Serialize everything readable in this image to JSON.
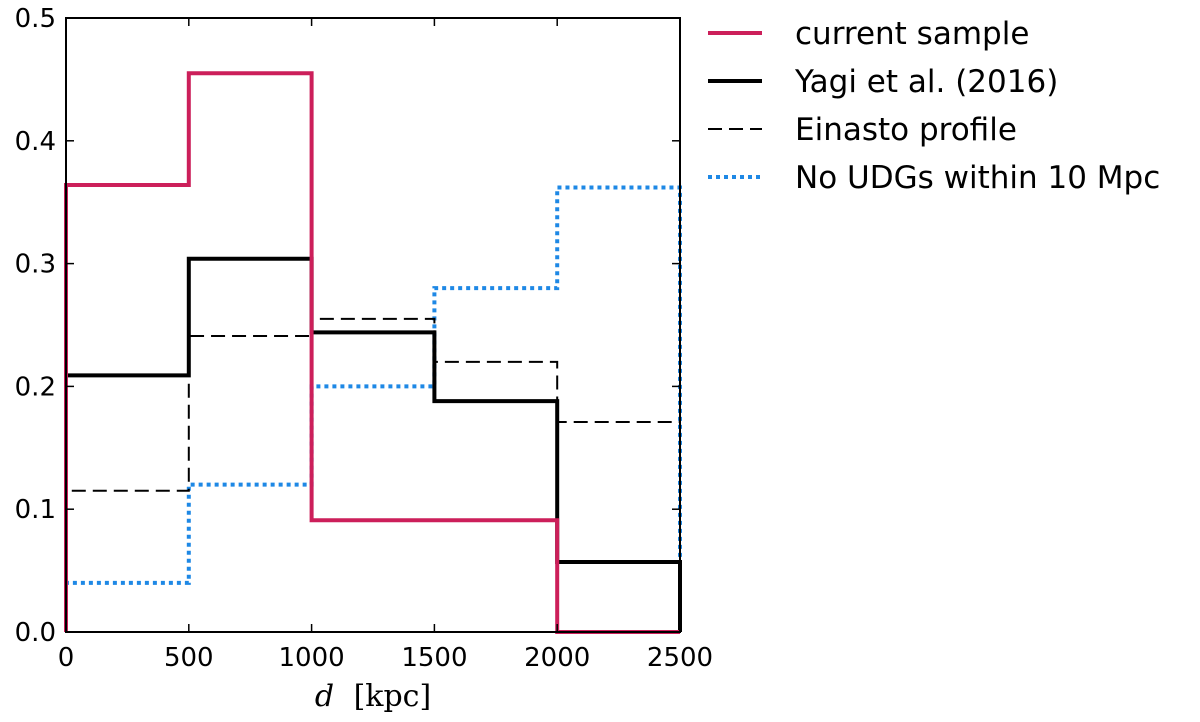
{
  "chart_data": {
    "type": "line",
    "step": true,
    "title": "",
    "xlabel_italic": "d",
    "xlabel_unit": "[kpc]",
    "ylabel": "",
    "xlim": [
      0,
      2500
    ],
    "ylim": [
      0,
      0.5
    ],
    "x_ticks": [
      0,
      500,
      1000,
      1500,
      2000,
      2500
    ],
    "x_tick_labels": [
      "0",
      "500",
      "1000",
      "1500",
      "2000",
      "2500"
    ],
    "y_ticks": [
      0.0,
      0.1,
      0.2,
      0.3,
      0.4,
      0.5
    ],
    "y_tick_labels": [
      "0.0",
      "0.1",
      "0.2",
      "0.3",
      "0.4",
      "0.5"
    ],
    "grid": false,
    "legend_position": "outside-right-top",
    "bin_edges": [
      0,
      500,
      1000,
      1500,
      2000,
      2500
    ],
    "series": [
      {
        "name": "current sample",
        "values": [
          0.364,
          0.455,
          0.091,
          0.091,
          0.0
        ],
        "color": "#cc1f5a",
        "style": "solid",
        "width": 4
      },
      {
        "name": "Yagi et al. (2016)",
        "values": [
          0.209,
          0.304,
          0.244,
          0.188,
          0.057
        ],
        "color": "#000000",
        "style": "solid",
        "width": 4
      },
      {
        "name": "Einasto profile",
        "values": [
          0.115,
          0.241,
          0.255,
          0.22,
          0.171
        ],
        "color": "#000000",
        "style": "dashed",
        "width": 2
      },
      {
        "name": "No UDGs within 10 Mpc",
        "values": [
          0.04,
          0.12,
          0.2,
          0.28,
          0.362
        ],
        "color": "#1e88e5",
        "style": "dotted",
        "width": 4
      }
    ]
  }
}
